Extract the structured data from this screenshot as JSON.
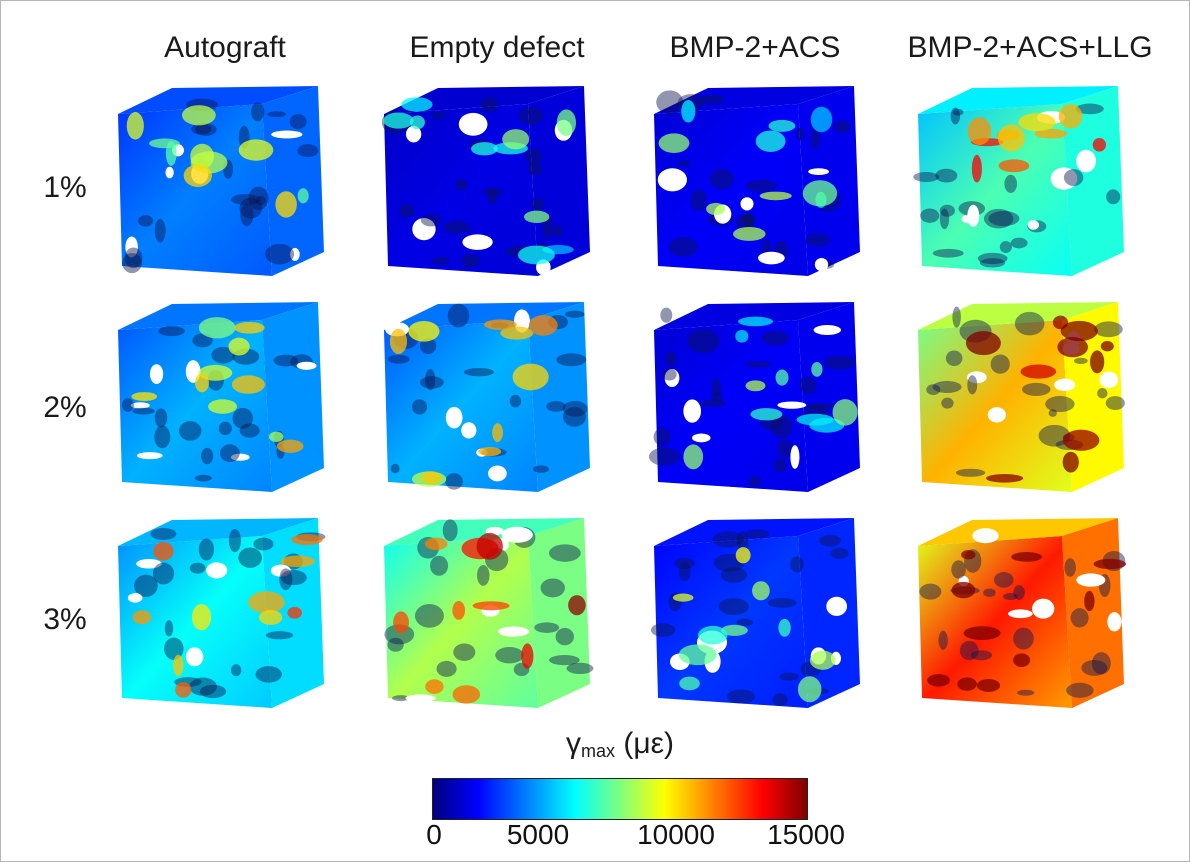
{
  "columns": [
    {
      "label": "Autograft"
    },
    {
      "label": "Empty defect"
    },
    {
      "label": "BMP-2+ACS"
    },
    {
      "label": "BMP-2+ACS+LLG"
    }
  ],
  "rows": [
    {
      "label": "1%"
    },
    {
      "label": "2%"
    },
    {
      "label": "3%"
    }
  ],
  "colorbar": {
    "symbol": "γ",
    "subscript": "max",
    "unit": "(με)",
    "ticks": [
      "0",
      "5000",
      "10000",
      "15000"
    ],
    "min": 0,
    "max": 15000,
    "colors": [
      "#00007f",
      "#0000ff",
      "#007fff",
      "#00ffff",
      "#7fff7f",
      "#ffff00",
      "#ff7f00",
      "#ff0000",
      "#7f0000"
    ]
  },
  "strain_levels": [
    [
      0.25,
      0.1,
      0.12,
      0.45
    ],
    [
      0.3,
      0.3,
      0.12,
      0.7
    ],
    [
      0.38,
      0.55,
      0.18,
      0.85
    ]
  ]
}
